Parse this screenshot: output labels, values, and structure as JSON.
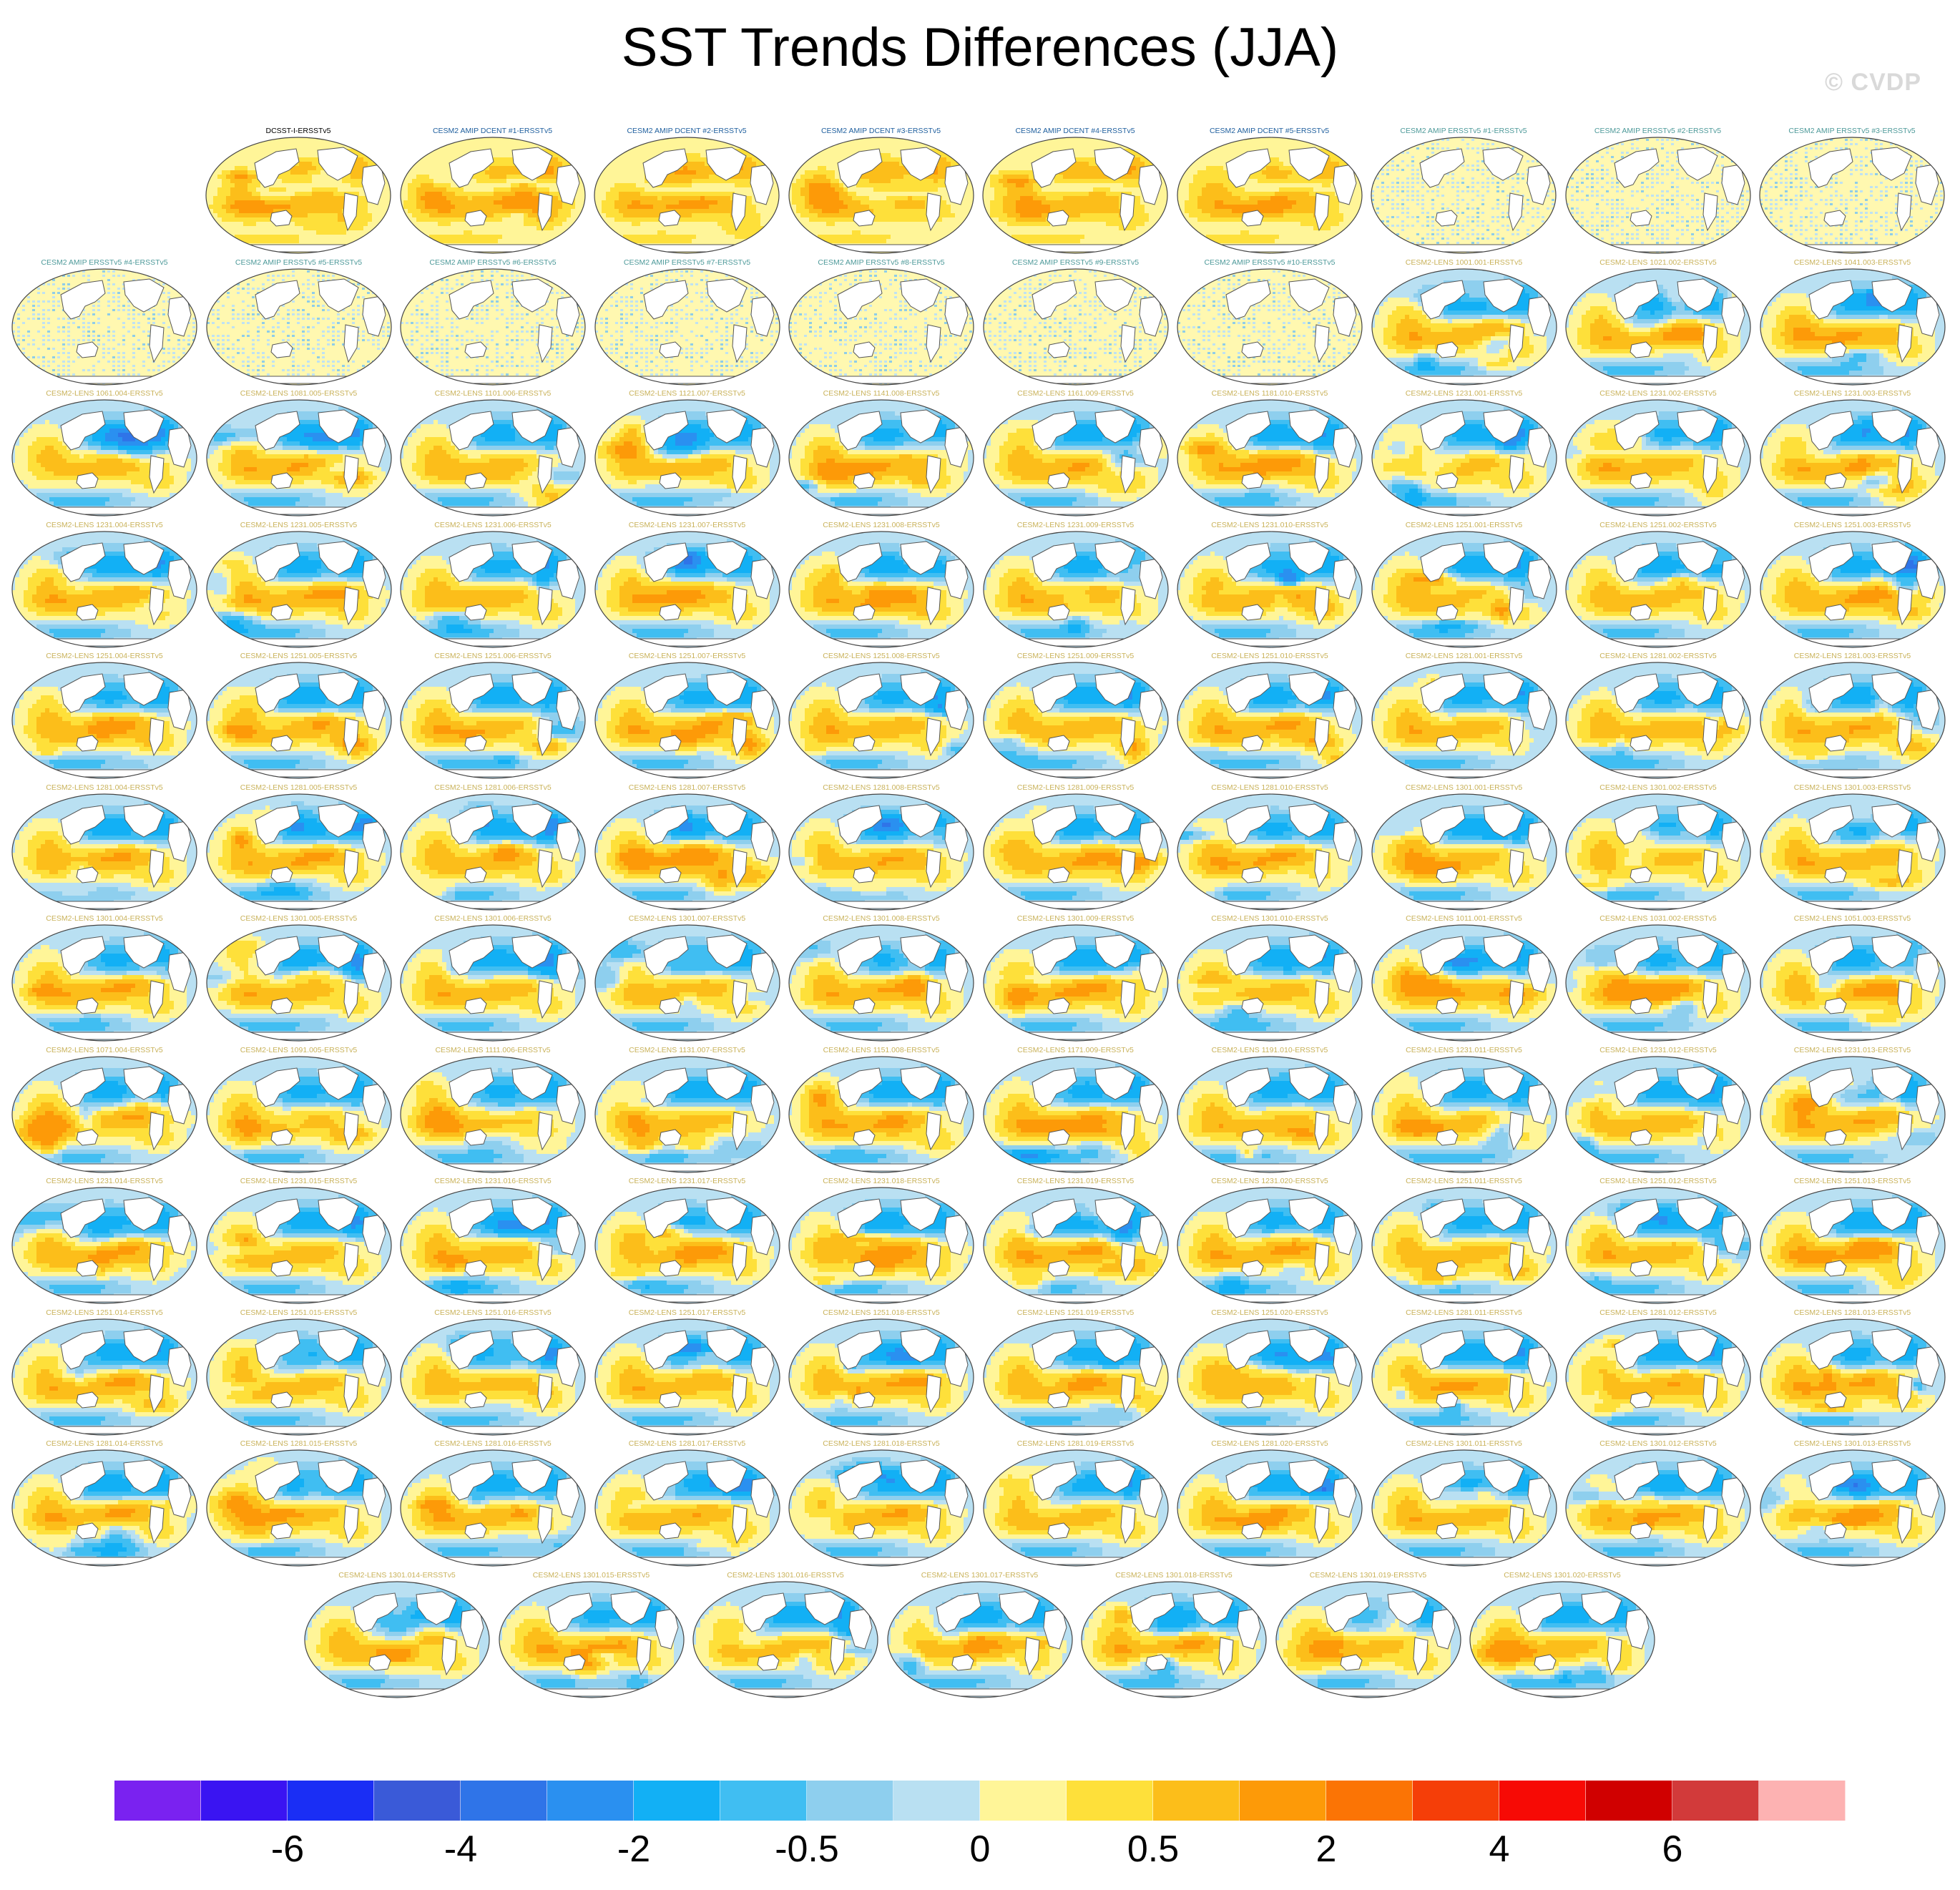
{
  "title": "SST Trends Differences (JJA)",
  "watermark": "© CVDP",
  "chart_data": {
    "type": "heatmap",
    "title": "SST Trends Differences (JJA)",
    "panel_titles": [
      "DCSST-I-ERSSTv5",
      "CESM2 AMIP DCENT #1-ERSSTv5",
      "CESM2 AMIP DCENT #2-ERSSTv5",
      "CESM2 AMIP DCENT #3-ERSSTv5",
      "CESM2 AMIP DCENT #4-ERSSTv5",
      "CESM2 AMIP DCENT #5-ERSSTv5",
      "CESM2 AMIP ERSSTv5 #1-ERSSTv5",
      "CESM2 AMIP ERSSTv5 #2-ERSSTv5",
      "CESM2 AMIP ERSSTv5 #3-ERSSTv5",
      "CESM2 AMIP ERSSTv5 #4-ERSSTv5",
      "CESM2 AMIP ERSSTv5 #5-ERSSTv5",
      "CESM2 AMIP ERSSTv5 #6-ERSSTv5",
      "CESM2 AMIP ERSSTv5 #7-ERSSTv5",
      "CESM2 AMIP ERSSTv5 #8-ERSSTv5",
      "CESM2 AMIP ERSSTv5 #9-ERSSTv5",
      "CESM2 AMIP ERSSTv5 #10-ERSSTv5",
      "CESM2-LENS 1001.001-ERSSTv5",
      "CESM2-LENS 1021.002-ERSSTv5",
      "CESM2-LENS 1041.003-ERSSTv5",
      "CESM2-LENS 1061.004-ERSSTv5",
      "CESM2-LENS 1081.005-ERSSTv5",
      "CESM2-LENS 1101.006-ERSSTv5",
      "CESM2-LENS 1121.007-ERSSTv5",
      "CESM2-LENS 1141.008-ERSSTv5",
      "CESM2-LENS 1161.009-ERSSTv5",
      "CESM2-LENS 1181.010-ERSSTv5",
      "CESM2-LENS 1231.001-ERSSTv5",
      "CESM2-LENS 1231.002-ERSSTv5",
      "CESM2-LENS 1231.003-ERSSTv5",
      "CESM2-LENS 1231.004-ERSSTv5",
      "CESM2-LENS 1231.005-ERSSTv5",
      "CESM2-LENS 1231.006-ERSSTv5",
      "CESM2-LENS 1231.007-ERSSTv5",
      "CESM2-LENS 1231.008-ERSSTv5",
      "CESM2-LENS 1231.009-ERSSTv5",
      "CESM2-LENS 1231.010-ERSSTv5",
      "CESM2-LENS 1251.001-ERSSTv5",
      "CESM2-LENS 1251.002-ERSSTv5",
      "CESM2-LENS 1251.003-ERSSTv5",
      "CESM2-LENS 1251.004-ERSSTv5",
      "CESM2-LENS 1251.005-ERSSTv5",
      "CESM2-LENS 1251.006-ERSSTv5",
      "CESM2-LENS 1251.007-ERSSTv5",
      "CESM2-LENS 1251.008-ERSSTv5",
      "CESM2-LENS 1251.009-ERSSTv5",
      "CESM2-LENS 1251.010-ERSSTv5",
      "CESM2-LENS 1281.001-ERSSTv5",
      "CESM2-LENS 1281.002-ERSSTv5",
      "CESM2-LENS 1281.003-ERSSTv5",
      "CESM2-LENS 1281.004-ERSSTv5",
      "CESM2-LENS 1281.005-ERSSTv5",
      "CESM2-LENS 1281.006-ERSSTv5",
      "CESM2-LENS 1281.007-ERSSTv5",
      "CESM2-LENS 1281.008-ERSSTv5",
      "CESM2-LENS 1281.009-ERSSTv5",
      "CESM2-LENS 1281.010-ERSSTv5",
      "CESM2-LENS 1301.001-ERSSTv5",
      "CESM2-LENS 1301.002-ERSSTv5",
      "CESM2-LENS 1301.003-ERSSTv5",
      "CESM2-LENS 1301.004-ERSSTv5",
      "CESM2-LENS 1301.005-ERSSTv5",
      "CESM2-LENS 1301.006-ERSSTv5",
      "CESM2-LENS 1301.007-ERSSTv5",
      "CESM2-LENS 1301.008-ERSSTv5",
      "CESM2-LENS 1301.009-ERSSTv5",
      "CESM2-LENS 1301.010-ERSSTv5",
      "CESM2-LENS 1011.001-ERSSTv5",
      "CESM2-LENS 1031.002-ERSSTv5",
      "CESM2-LENS 1051.003-ERSSTv5",
      "CESM2-LENS 1071.004-ERSSTv5",
      "CESM2-LENS 1091.005-ERSSTv5",
      "CESM2-LENS 1111.006-ERSSTv5",
      "CESM2-LENS 1131.007-ERSSTv5",
      "CESM2-LENS 1151.008-ERSSTv5",
      "CESM2-LENS 1171.009-ERSSTv5",
      "CESM2-LENS 1191.010-ERSSTv5",
      "CESM2-LENS 1231.011-ERSSTv5",
      "CESM2-LENS 1231.012-ERSSTv5",
      "CESM2-LENS 1231.013-ERSSTv5",
      "CESM2-LENS 1231.014-ERSSTv5",
      "CESM2-LENS 1231.015-ERSSTv5",
      "CESM2-LENS 1231.016-ERSSTv5",
      "CESM2-LENS 1231.017-ERSSTv5",
      "CESM2-LENS 1231.018-ERSSTv5",
      "CESM2-LENS 1231.019-ERSSTv5",
      "CESM2-LENS 1231.020-ERSSTv5",
      "CESM2-LENS 1251.011-ERSSTv5",
      "CESM2-LENS 1251.012-ERSSTv5",
      "CESM2-LENS 1251.013-ERSSTv5",
      "CESM2-LENS 1251.014-ERSSTv5",
      "CESM2-LENS 1251.015-ERSSTv5",
      "CESM2-LENS 1251.016-ERSSTv5",
      "CESM2-LENS 1251.017-ERSSTv5",
      "CESM2-LENS 1251.018-ERSSTv5",
      "CESM2-LENS 1251.019-ERSSTv5",
      "CESM2-LENS 1251.020-ERSSTv5",
      "CESM2-LENS 1281.011-ERSSTv5",
      "CESM2-LENS 1281.012-ERSSTv5",
      "CESM2-LENS 1281.013-ERSSTv5",
      "CESM2-LENS 1281.014-ERSSTv5",
      "CESM2-LENS 1281.015-ERSSTv5",
      "CESM2-LENS 1281.016-ERSSTv5",
      "CESM2-LENS 1281.017-ERSSTv5",
      "CESM2-LENS 1281.018-ERSSTv5",
      "CESM2-LENS 1281.019-ERSSTv5",
      "CESM2-LENS 1281.020-ERSSTv5",
      "CESM2-LENS 1301.011-ERSSTv5",
      "CESM2-LENS 1301.012-ERSSTv5",
      "CESM2-LENS 1301.013-ERSSTv5",
      "CESM2-LENS 1301.014-ERSSTv5",
      "CESM2-LENS 1301.015-ERSSTv5",
      "CESM2-LENS 1301.016-ERSSTv5",
      "CESM2-LENS 1301.017-ERSSTv5",
      "CESM2-LENS 1301.018-ERSSTv5",
      "CESM2-LENS 1301.019-ERSSTv5",
      "CESM2-LENS 1301.020-ERSSTv5"
    ],
    "panel_rows": [
      9,
      10,
      10,
      10,
      10,
      10,
      10,
      10,
      10,
      10,
      10,
      7
    ],
    "panel_label_colors": {
      "observation": "#000000",
      "amip_dcent": "#1f5f9e",
      "amip_ersstv5": "#4e9a9a",
      "lens": "#c9b25a"
    },
    "colorbar": {
      "colors": [
        "#7a22f0",
        "#3a14f2",
        "#1a2ef5",
        "#3a5ad8",
        "#2f74e8",
        "#2a90f0",
        "#12b0f5",
        "#40bef2",
        "#8ecfee",
        "#b9e0f2",
        "#fff598",
        "#fee03a",
        "#fcbe1a",
        "#fd9a08",
        "#fb7405",
        "#f53e08",
        "#f70a05",
        "#d00000",
        "#d23a3a",
        "#fdb2b2"
      ],
      "tick_labels": [
        "-6",
        "-4",
        "-2",
        "-0.5",
        "0",
        "0.5",
        "2",
        "4",
        "6"
      ],
      "tick_boundaries": [
        2,
        4,
        6,
        8,
        10,
        12,
        14,
        16,
        18
      ]
    }
  }
}
